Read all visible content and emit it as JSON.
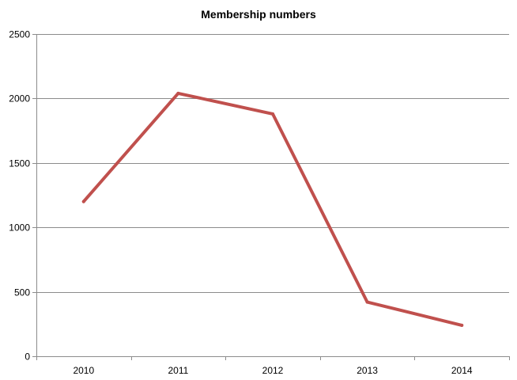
{
  "chart_data": {
    "type": "line",
    "title": "Membership numbers",
    "xlabel": "",
    "ylabel": "",
    "categories": [
      "2010",
      "2011",
      "2012",
      "2013",
      "2014"
    ],
    "series": [
      {
        "values": [
          1200,
          2040,
          1880,
          420,
          240
        ],
        "color": "#c0504d"
      }
    ],
    "ylim": [
      0,
      2500
    ],
    "yticks": [
      0,
      500,
      1000,
      1500,
      2000,
      2500
    ],
    "grid": true,
    "legend": "none"
  }
}
